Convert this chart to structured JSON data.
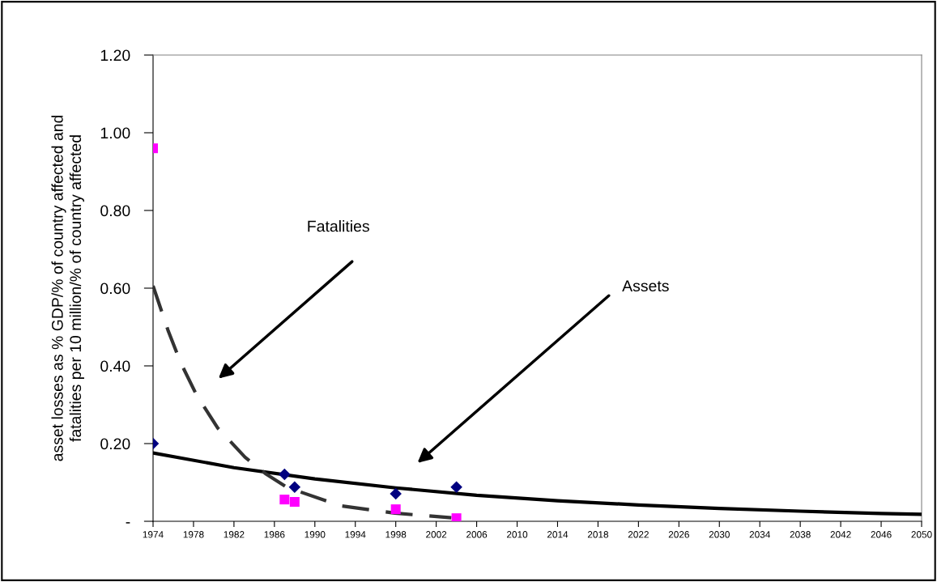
{
  "chart_data": {
    "type": "scatter",
    "ylabel": "asset losses as % GDP/% of country affected and\nfatalities per 10 million/% of country affected",
    "x": [
      1974,
      1987,
      1988,
      1998,
      2004
    ],
    "series": [
      {
        "color": "#000080",
        "marker": "diamond",
        "values": [
          0.2,
          0.121,
          0.088,
          0.071,
          0.088
        ]
      },
      {
        "color": "#ff00ff",
        "marker": "square",
        "values": [
          0.96,
          0.056,
          0.05,
          0.031,
          0.008
        ]
      },
      {
        "type": "line",
        "color": "#000000",
        "line_style": "solid",
        "x": [
          1974,
          1982,
          1990,
          1998,
          2006,
          2014,
          2022,
          2030,
          2038,
          2046,
          2050
        ],
        "values": [
          0.176,
          0.138,
          0.109,
          0.086,
          0.067,
          0.053,
          0.042,
          0.033,
          0.026,
          0.02,
          0.018
        ]
      },
      {
        "type": "line",
        "color": "#333333",
        "line_style": "dashed",
        "x": [
          1974,
          1975.5,
          1976.7,
          1978.3,
          1980.4,
          1983.1,
          1985.1,
          1987.2,
          1992.5,
          1997.9,
          2003.5
        ],
        "values": [
          0.606,
          0.49,
          0.41,
          0.325,
          0.24,
          0.165,
          0.123,
          0.088,
          0.04,
          0.021,
          0.009
        ]
      }
    ],
    "annotations": [
      "Fatalities",
      "Assets"
    ],
    "xlim": [
      1974,
      2050
    ],
    "xticks": [
      1974,
      1978,
      1982,
      1986,
      1990,
      1994,
      1998,
      2002,
      2006,
      2010,
      2014,
      2018,
      2022,
      2026,
      2030,
      2034,
      2038,
      2042,
      2046,
      2050
    ],
    "ylim": [
      0,
      1.2
    ],
    "yticks": [
      {
        "value": 0,
        "label": "-"
      },
      {
        "value": 0.2,
        "label": "0.20"
      },
      {
        "value": 0.4,
        "label": "0.40"
      },
      {
        "value": 0.6,
        "label": "0.60"
      },
      {
        "value": 0.8,
        "label": "0.80"
      },
      {
        "value": 1.0,
        "label": "1.00"
      },
      {
        "value": 1.2,
        "label": "1.20"
      }
    ],
    "grid": false,
    "legend": false
  }
}
